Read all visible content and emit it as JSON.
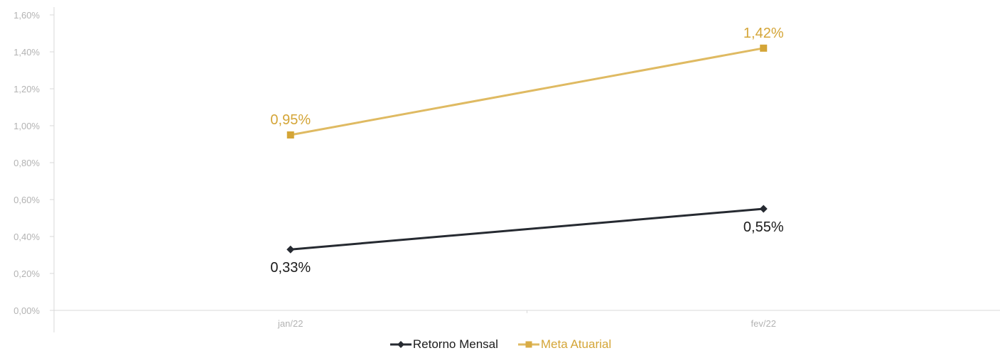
{
  "chart_data": {
    "type": "line",
    "categories": [
      "jan/22",
      "fev/22"
    ],
    "y_ticks": [
      "0,00%",
      "0,20%",
      "0,40%",
      "0,60%",
      "0,80%",
      "1,00%",
      "1,20%",
      "1,40%",
      "1,60%"
    ],
    "ylim": [
      0,
      1.6
    ],
    "series": [
      {
        "name": "Retorno Mensal",
        "values": [
          0.33,
          0.55
        ],
        "labels": [
          "0,33%",
          "0,55%"
        ],
        "color": "#262a31",
        "marker": "diamond",
        "label_position": "below"
      },
      {
        "name": "Meta Atuarial",
        "values": [
          0.95,
          1.42
        ],
        "labels": [
          "0,95%",
          "1,42%"
        ],
        "color": "#dfba62",
        "label_color": "#d4a537",
        "marker": "square",
        "label_position": "above"
      }
    ],
    "legend_position": "bottom",
    "grid": false
  }
}
